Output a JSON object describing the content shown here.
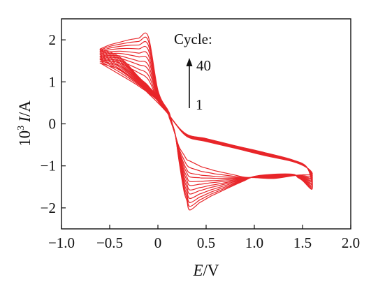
{
  "chart_data": {
    "type": "line",
    "title": "",
    "xlabel": {
      "italic": "E",
      "unit": "/V"
    },
    "ylabel": {
      "prefix": "10",
      "sup": "3",
      "italic": "I",
      "unit": "/A"
    },
    "xlim": [
      -1.0,
      2.0
    ],
    "ylim": [
      -2.5,
      2.5
    ],
    "x_ticks": [
      -1.0,
      -0.5,
      0.0,
      0.5,
      1.0,
      1.5,
      2.0
    ],
    "x_tick_labels": [
      "−1.0",
      "−0.5",
      "0",
      "0.5",
      "1.0",
      "1.5",
      "2.0"
    ],
    "y_ticks": [
      -2,
      -1,
      0,
      1,
      2
    ],
    "y_tick_labels": [
      "−2",
      "−1",
      "0",
      "1",
      "2"
    ],
    "grid": false,
    "color": "#e8262a",
    "scan_range": [
      -0.6,
      1.6
    ],
    "cycles_drawn": [
      1,
      2,
      4,
      6,
      9,
      12,
      16,
      20,
      25,
      30,
      35,
      40
    ],
    "series_envelope": [
      {
        "cycle": 1,
        "forward": [
          [
            -0.6,
            1.45
          ],
          [
            -0.4,
            1.18
          ],
          [
            -0.2,
            0.9
          ],
          [
            0.0,
            0.55
          ],
          [
            0.15,
            0.1
          ],
          [
            0.3,
            -0.3
          ],
          [
            0.5,
            -0.42
          ],
          [
            0.8,
            -0.58
          ],
          [
            1.1,
            -0.75
          ],
          [
            1.4,
            -0.9
          ],
          [
            1.55,
            -1.05
          ],
          [
            1.6,
            -1.2
          ]
        ],
        "reverse": [
          [
            1.6,
            -1.2
          ],
          [
            1.45,
            -1.22
          ],
          [
            1.2,
            -1.3
          ],
          [
            0.9,
            -1.27
          ],
          [
            0.6,
            -1.12
          ],
          [
            0.45,
            -1.02
          ],
          [
            0.3,
            -0.85
          ],
          [
            0.22,
            -0.55
          ],
          [
            0.15,
            -0.05
          ],
          [
            0.1,
            0.25
          ],
          [
            0.0,
            0.5
          ],
          [
            -0.2,
            0.95
          ],
          [
            -0.4,
            1.3
          ],
          [
            -0.6,
            1.45
          ]
        ]
      },
      {
        "cycle": 40,
        "forward": [
          [
            -0.6,
            1.78
          ],
          [
            -0.4,
            1.6
          ],
          [
            -0.2,
            1.12
          ],
          [
            0.0,
            0.65
          ],
          [
            0.15,
            0.1
          ],
          [
            0.3,
            -0.25
          ],
          [
            0.5,
            -0.35
          ],
          [
            0.8,
            -0.52
          ],
          [
            1.1,
            -0.68
          ],
          [
            1.4,
            -0.86
          ],
          [
            1.55,
            -1.05
          ],
          [
            1.6,
            -1.55
          ]
        ],
        "reverse": [
          [
            1.6,
            -1.55
          ],
          [
            1.5,
            -1.35
          ],
          [
            1.4,
            -1.2
          ],
          [
            1.2,
            -1.2
          ],
          [
            1.0,
            -1.25
          ],
          [
            0.8,
            -1.45
          ],
          [
            0.55,
            -1.72
          ],
          [
            0.43,
            -1.88
          ],
          [
            0.33,
            -2.05
          ],
          [
            0.27,
            -1.6
          ],
          [
            0.22,
            -0.9
          ],
          [
            0.18,
            -0.25
          ],
          [
            0.12,
            0.25
          ],
          [
            0.0,
            0.8
          ],
          [
            -0.1,
            2.08
          ],
          [
            -0.3,
            2.0
          ],
          [
            -0.5,
            1.88
          ],
          [
            -0.6,
            1.78
          ]
        ]
      }
    ],
    "annotation": {
      "title": "Cycle:",
      "start_label": "1",
      "end_label": "40",
      "arrow_direction": "up"
    }
  }
}
